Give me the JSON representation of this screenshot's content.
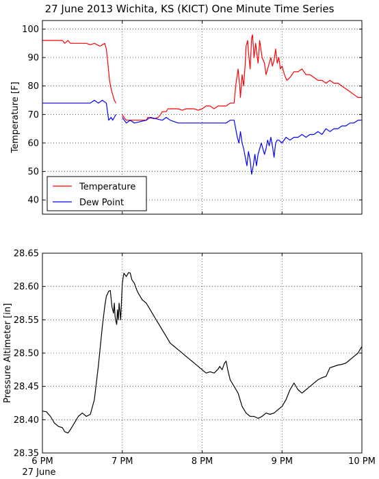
{
  "title": "27 June 2013 Wichita, KS (KICT) One Minute Time Series",
  "chart_data": [
    {
      "type": "line",
      "ylabel": "Temperature [F]",
      "xlabel": "",
      "xlim": [
        18.0,
        22.0
      ],
      "ylim": [
        35,
        103
      ],
      "yticks": [
        40,
        50,
        60,
        70,
        80,
        90,
        100
      ],
      "grid": true,
      "legend": "lower-left",
      "series": [
        {
          "name": "Temperature",
          "color": "#ff0000",
          "points": [
            [
              18.0,
              96
            ],
            [
              18.25,
              96
            ],
            [
              18.28,
              95
            ],
            [
              18.32,
              96
            ],
            [
              18.35,
              95
            ],
            [
              18.55,
              95
            ],
            [
              18.6,
              94.5
            ],
            [
              18.65,
              95
            ],
            [
              18.72,
              94
            ],
            [
              18.78,
              95
            ],
            [
              18.8,
              93
            ],
            [
              18.82,
              88
            ],
            [
              18.84,
              82
            ],
            [
              18.86,
              79
            ],
            [
              18.88,
              77
            ],
            [
              18.9,
              75
            ],
            [
              18.92,
              74
            ],
            [
              null,
              null
            ],
            [
              19.0,
              70
            ],
            [
              19.02,
              69
            ],
            [
              19.05,
              68
            ],
            [
              19.3,
              68
            ],
            [
              19.32,
              69
            ],
            [
              19.4,
              68.5
            ],
            [
              19.45,
              69
            ],
            [
              19.48,
              70
            ],
            [
              19.5,
              71
            ],
            [
              19.55,
              71
            ],
            [
              19.57,
              72
            ],
            [
              19.7,
              72
            ],
            [
              19.75,
              71.5
            ],
            [
              19.8,
              72
            ],
            [
              19.9,
              72
            ],
            [
              19.95,
              71.5
            ],
            [
              20.0,
              72
            ],
            [
              20.05,
              73
            ],
            [
              20.1,
              73
            ],
            [
              20.15,
              72
            ],
            [
              20.2,
              73
            ],
            [
              20.3,
              73
            ],
            [
              20.35,
              74
            ],
            [
              20.4,
              74
            ],
            [
              20.42,
              80
            ],
            [
              20.44,
              84
            ],
            [
              20.45,
              86
            ],
            [
              20.47,
              80
            ],
            [
              20.48,
              76
            ],
            [
              20.5,
              84
            ],
            [
              20.52,
              80
            ],
            [
              20.54,
              88
            ],
            [
              20.55,
              94
            ],
            [
              20.57,
              96
            ],
            [
              20.58,
              92
            ],
            [
              20.6,
              86
            ],
            [
              20.62,
              97
            ],
            [
              20.63,
              98
            ],
            [
              20.65,
              90
            ],
            [
              20.67,
              95
            ],
            [
              20.7,
              88
            ],
            [
              20.72,
              96
            ],
            [
              20.75,
              90
            ],
            [
              20.78,
              88
            ],
            [
              20.8,
              84
            ],
            [
              20.82,
              86
            ],
            [
              20.84,
              88
            ],
            [
              20.86,
              90
            ],
            [
              20.88,
              87
            ],
            [
              20.9,
              89
            ],
            [
              20.92,
              93
            ],
            [
              20.94,
              88
            ],
            [
              20.96,
              90
            ],
            [
              20.98,
              86
            ],
            [
              21.0,
              87
            ],
            [
              21.03,
              84
            ],
            [
              21.06,
              82
            ],
            [
              21.1,
              83
            ],
            [
              21.15,
              85
            ],
            [
              21.2,
              85
            ],
            [
              21.25,
              86
            ],
            [
              21.3,
              84
            ],
            [
              21.35,
              84
            ],
            [
              21.4,
              83
            ],
            [
              21.45,
              82
            ],
            [
              21.5,
              82
            ],
            [
              21.55,
              81
            ],
            [
              21.6,
              82
            ],
            [
              21.65,
              81
            ],
            [
              21.7,
              81
            ],
            [
              21.75,
              80
            ],
            [
              21.8,
              79
            ],
            [
              21.85,
              78
            ],
            [
              21.9,
              77
            ],
            [
              21.95,
              76
            ],
            [
              22.0,
              76
            ]
          ]
        },
        {
          "name": "Dew Point",
          "color": "#0000ff",
          "points": [
            [
              18.0,
              74
            ],
            [
              18.6,
              74
            ],
            [
              18.65,
              75
            ],
            [
              18.7,
              74
            ],
            [
              18.75,
              75
            ],
            [
              18.8,
              74
            ],
            [
              18.83,
              68
            ],
            [
              18.86,
              69
            ],
            [
              18.88,
              68
            ],
            [
              18.9,
              69
            ],
            [
              18.92,
              70
            ],
            [
              null,
              null
            ],
            [
              19.0,
              69
            ],
            [
              19.05,
              67
            ],
            [
              19.1,
              68
            ],
            [
              19.15,
              67
            ],
            [
              19.3,
              68
            ],
            [
              19.35,
              69
            ],
            [
              19.5,
              68
            ],
            [
              19.55,
              69
            ],
            [
              19.6,
              68
            ],
            [
              19.7,
              67
            ],
            [
              19.8,
              67
            ],
            [
              20.0,
              67
            ],
            [
              20.2,
              67
            ],
            [
              20.3,
              67
            ],
            [
              20.35,
              68
            ],
            [
              20.4,
              68
            ],
            [
              20.42,
              65
            ],
            [
              20.44,
              62
            ],
            [
              20.46,
              60
            ],
            [
              20.48,
              64
            ],
            [
              20.5,
              60
            ],
            [
              20.52,
              58
            ],
            [
              20.54,
              55
            ],
            [
              20.56,
              52
            ],
            [
              20.58,
              57
            ],
            [
              20.6,
              54
            ],
            [
              20.62,
              49
            ],
            [
              20.64,
              52
            ],
            [
              20.66,
              56
            ],
            [
              20.68,
              52
            ],
            [
              20.7,
              56
            ],
            [
              20.72,
              58
            ],
            [
              20.74,
              60
            ],
            [
              20.78,
              56
            ],
            [
              20.8,
              58
            ],
            [
              20.82,
              61
            ],
            [
              20.84,
              59
            ],
            [
              20.86,
              62
            ],
            [
              20.88,
              59
            ],
            [
              20.9,
              55
            ],
            [
              20.92,
              60
            ],
            [
              20.94,
              61
            ],
            [
              20.96,
              61
            ],
            [
              21.0,
              60
            ],
            [
              21.05,
              62
            ],
            [
              21.1,
              61
            ],
            [
              21.15,
              62
            ],
            [
              21.2,
              62
            ],
            [
              21.25,
              63
            ],
            [
              21.3,
              62
            ],
            [
              21.35,
              63
            ],
            [
              21.4,
              63
            ],
            [
              21.45,
              64
            ],
            [
              21.5,
              63
            ],
            [
              21.55,
              65
            ],
            [
              21.6,
              64
            ],
            [
              21.65,
              65
            ],
            [
              21.7,
              65
            ],
            [
              21.75,
              66
            ],
            [
              21.8,
              66
            ],
            [
              21.85,
              67
            ],
            [
              21.9,
              67
            ],
            [
              21.95,
              68
            ],
            [
              22.0,
              68
            ]
          ]
        }
      ]
    },
    {
      "type": "line",
      "ylabel": "Pressure Altimeter [in]",
      "xlabel": "",
      "xlim": [
        18.0,
        22.0
      ],
      "ylim": [
        28.35,
        28.65
      ],
      "yticks": [
        28.35,
        28.4,
        28.45,
        28.5,
        28.55,
        28.6,
        28.65
      ],
      "ytick_labels": [
        "28.35",
        "28.40",
        "28.45",
        "28.50",
        "28.55",
        "28.60",
        "28.65"
      ],
      "xticks": [
        18,
        19,
        20,
        21,
        22
      ],
      "xtick_labels": [
        "6 PM",
        "7 PM",
        "8 PM",
        "9 PM",
        "10 PM"
      ],
      "x_sublabel": "27 June",
      "grid": true,
      "series": [
        {
          "name": "",
          "color": "#000000",
          "points": [
            [
              18.0,
              28.413
            ],
            [
              18.05,
              28.412
            ],
            [
              18.1,
              28.405
            ],
            [
              18.15,
              28.395
            ],
            [
              18.2,
              28.39
            ],
            [
              18.25,
              28.388
            ],
            [
              18.28,
              28.382
            ],
            [
              18.32,
              28.38
            ],
            [
              18.35,
              28.385
            ],
            [
              18.4,
              28.395
            ],
            [
              18.45,
              28.405
            ],
            [
              18.5,
              28.41
            ],
            [
              18.55,
              28.405
            ],
            [
              18.6,
              28.408
            ],
            [
              18.65,
              28.43
            ],
            [
              18.7,
              28.48
            ],
            [
              18.75,
              28.54
            ],
            [
              18.78,
              28.57
            ],
            [
              18.8,
              28.585
            ],
            [
              18.83,
              28.593
            ],
            [
              18.85,
              28.594
            ],
            [
              18.87,
              28.57
            ],
            [
              18.89,
              28.56
            ],
            [
              18.9,
              28.575
            ],
            [
              18.91,
              28.555
            ],
            [
              18.92,
              28.548
            ],
            [
              18.93,
              28.543
            ],
            [
              18.94,
              28.565
            ],
            [
              18.95,
              28.55
            ],
            [
              18.96,
              28.575
            ],
            [
              18.98,
              28.55
            ],
            [
              19.0,
              28.605
            ],
            [
              19.02,
              28.62
            ],
            [
              19.05,
              28.615
            ],
            [
              19.08,
              28.621
            ],
            [
              19.1,
              28.62
            ],
            [
              19.12,
              28.61
            ],
            [
              19.15,
              28.605
            ],
            [
              19.18,
              28.595
            ],
            [
              19.2,
              28.59
            ],
            [
              19.25,
              28.58
            ],
            [
              19.3,
              28.575
            ],
            [
              19.35,
              28.565
            ],
            [
              19.4,
              28.555
            ],
            [
              19.45,
              28.545
            ],
            [
              19.5,
              28.535
            ],
            [
              19.55,
              28.525
            ],
            [
              19.6,
              28.515
            ],
            [
              19.7,
              28.505
            ],
            [
              19.8,
              28.495
            ],
            [
              19.9,
              28.485
            ],
            [
              20.0,
              28.475
            ],
            [
              20.05,
              28.47
            ],
            [
              20.1,
              28.472
            ],
            [
              20.15,
              28.47
            ],
            [
              20.2,
              28.476
            ],
            [
              20.22,
              28.48
            ],
            [
              20.25,
              28.475
            ],
            [
              20.28,
              28.485
            ],
            [
              20.3,
              28.488
            ],
            [
              20.32,
              28.475
            ],
            [
              20.35,
              28.46
            ],
            [
              20.4,
              28.45
            ],
            [
              20.45,
              28.44
            ],
            [
              20.5,
              28.42
            ],
            [
              20.55,
              28.41
            ],
            [
              20.6,
              28.405
            ],
            [
              20.65,
              28.405
            ],
            [
              20.7,
              28.402
            ],
            [
              20.75,
              28.405
            ],
            [
              20.8,
              28.41
            ],
            [
              20.85,
              28.408
            ],
            [
              20.9,
              28.41
            ],
            [
              20.95,
              28.415
            ],
            [
              21.0,
              28.42
            ],
            [
              21.05,
              28.43
            ],
            [
              21.1,
              28.445
            ],
            [
              21.15,
              28.455
            ],
            [
              21.2,
              28.445
            ],
            [
              21.25,
              28.44
            ],
            [
              21.3,
              28.445
            ],
            [
              21.35,
              28.45
            ],
            [
              21.4,
              28.455
            ],
            [
              21.45,
              28.46
            ],
            [
              21.5,
              28.463
            ],
            [
              21.55,
              28.465
            ],
            [
              21.6,
              28.478
            ],
            [
              21.65,
              28.48
            ],
            [
              21.7,
              28.482
            ],
            [
              21.75,
              28.483
            ],
            [
              21.8,
              28.485
            ],
            [
              21.85,
              28.49
            ],
            [
              21.9,
              28.495
            ],
            [
              21.95,
              28.5
            ],
            [
              22.0,
              28.51
            ]
          ]
        }
      ]
    }
  ]
}
